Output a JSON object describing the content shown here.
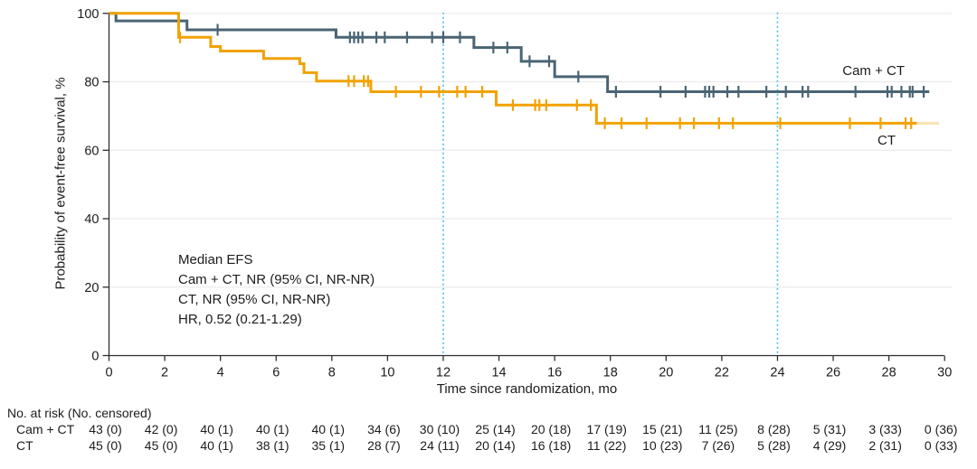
{
  "figure": {
    "y_axis_title": "Probability of event-free survival, %",
    "x_axis_title": "Time since randomization, mo",
    "annotation": {
      "line1": "Median EFS",
      "line2": "Cam + CT, NR (95% CI, NR-NR)",
      "line3": "CT, NR (95% CI, NR-NR)",
      "line4": "HR, 0.52 (0.21-1.29)"
    },
    "series_labels": {
      "camct": "Cam + CT",
      "ct": "CT"
    }
  },
  "chart_data": {
    "type": "line",
    "subtype": "kaplan-meier-step",
    "title": "",
    "xlabel": "Time since randomization, mo",
    "ylabel": "Probability of event-free survival, %",
    "xlim": [
      0,
      30
    ],
    "ylim": [
      0,
      100
    ],
    "x_ticks": [
      0,
      2,
      4,
      6,
      8,
      10,
      12,
      14,
      16,
      18,
      20,
      22,
      24,
      26,
      28,
      30
    ],
    "y_ticks": [
      0,
      20,
      40,
      60,
      80,
      100
    ],
    "grid": "horizontal",
    "reference_lines_x": [
      12,
      24
    ],
    "legend_position": "inline-right",
    "series": [
      {
        "name": "Cam + CT",
        "color": "#4A6473",
        "steps": [
          [
            0,
            100
          ],
          [
            0.25,
            97.8
          ],
          [
            2.8,
            95.2
          ],
          [
            8.15,
            93.0
          ],
          [
            13.1,
            90.0
          ],
          [
            14.8,
            86.0
          ],
          [
            16.0,
            81.5
          ],
          [
            17.9,
            77.1
          ],
          [
            29.45,
            77.1
          ]
        ],
        "censors": [
          [
            3.9,
            95.2
          ],
          [
            8.65,
            93.0
          ],
          [
            8.8,
            93.0
          ],
          [
            8.95,
            93.0
          ],
          [
            9.1,
            93.0
          ],
          [
            9.6,
            93.0
          ],
          [
            9.9,
            93.0
          ],
          [
            10.7,
            93.0
          ],
          [
            11.6,
            93.0
          ],
          [
            12.0,
            93.0
          ],
          [
            12.6,
            93.0
          ],
          [
            13.8,
            90.0
          ],
          [
            14.3,
            90.0
          ],
          [
            15.1,
            86.0
          ],
          [
            15.8,
            86.0
          ],
          [
            16.85,
            81.5
          ],
          [
            18.2,
            77.1
          ],
          [
            19.8,
            77.1
          ],
          [
            20.7,
            77.1
          ],
          [
            21.4,
            77.1
          ],
          [
            21.55,
            77.1
          ],
          [
            21.7,
            77.1
          ],
          [
            22.2,
            77.1
          ],
          [
            22.6,
            77.1
          ],
          [
            23.6,
            77.1
          ],
          [
            24.3,
            77.1
          ],
          [
            24.9,
            77.1
          ],
          [
            25.1,
            77.1
          ],
          [
            26.8,
            77.1
          ],
          [
            27.95,
            77.1
          ],
          [
            28.1,
            77.1
          ],
          [
            28.45,
            77.1
          ],
          [
            28.75,
            77.1
          ],
          [
            28.85,
            77.1
          ],
          [
            29.25,
            77.1
          ]
        ],
        "faint_tail_to": null
      },
      {
        "name": "CT",
        "color": "#F1A205",
        "steps": [
          [
            0,
            100
          ],
          [
            2.5,
            93.0
          ],
          [
            3.65,
            90.3
          ],
          [
            4.0,
            89.0
          ],
          [
            5.55,
            86.8
          ],
          [
            6.85,
            85.3
          ],
          [
            7.0,
            82.7
          ],
          [
            7.45,
            80.2
          ],
          [
            9.4,
            77.1
          ],
          [
            13.9,
            73.2
          ],
          [
            17.5,
            67.9
          ],
          [
            29.0,
            67.9
          ]
        ],
        "censors": [
          [
            2.55,
            93.0
          ],
          [
            8.6,
            80.2
          ],
          [
            8.8,
            80.2
          ],
          [
            9.15,
            80.2
          ],
          [
            9.3,
            80.2
          ],
          [
            10.3,
            77.1
          ],
          [
            11.2,
            77.1
          ],
          [
            11.85,
            77.1
          ],
          [
            12.5,
            77.1
          ],
          [
            12.8,
            77.1
          ],
          [
            13.4,
            77.1
          ],
          [
            14.5,
            73.2
          ],
          [
            15.3,
            73.2
          ],
          [
            15.45,
            73.2
          ],
          [
            15.7,
            73.2
          ],
          [
            16.8,
            73.2
          ],
          [
            17.3,
            73.2
          ],
          [
            17.8,
            67.9
          ],
          [
            18.4,
            67.9
          ],
          [
            19.3,
            67.9
          ],
          [
            20.5,
            67.9
          ],
          [
            21.0,
            67.9
          ],
          [
            21.9,
            67.9
          ],
          [
            22.4,
            67.9
          ],
          [
            24.1,
            67.9
          ],
          [
            26.6,
            67.9
          ],
          [
            27.7,
            67.9
          ],
          [
            28.6,
            67.9
          ],
          [
            28.8,
            67.9
          ]
        ],
        "faint_tail_to": 29.8
      }
    ]
  },
  "risk_table": {
    "header": "No. at risk (No. censored)",
    "times": [
      0,
      2,
      4,
      6,
      8,
      10,
      12,
      14,
      16,
      18,
      20,
      22,
      24,
      26,
      28,
      30
    ],
    "rows": [
      {
        "label": "Cam + CT",
        "values": [
          "43 (0)",
          "42 (0)",
          "40 (1)",
          "40 (1)",
          "40 (1)",
          "34 (6)",
          "30 (10)",
          "25 (14)",
          "20 (18)",
          "17 (19)",
          "15 (21)",
          "11 (25)",
          "8 (28)",
          "5 (31)",
          "3 (33)",
          "0 (36)"
        ]
      },
      {
        "label": "CT",
        "values": [
          "45 (0)",
          "45 (0)",
          "40 (1)",
          "38 (1)",
          "35 (1)",
          "28 (7)",
          "24 (11)",
          "20 (14)",
          "16 (18)",
          "11 (22)",
          "10 (23)",
          "7 (26)",
          "5 (28)",
          "4 (29)",
          "2 (31)",
          "0 (33)"
        ]
      }
    ]
  },
  "colors": {
    "cam_ct_series": "#4A6473",
    "ct_series": "#F1A205",
    "reference_line": "#43BEE8",
    "gridline": "#EBEBEB",
    "axis": "#2E2E2E",
    "text": "#1C1C1C"
  }
}
